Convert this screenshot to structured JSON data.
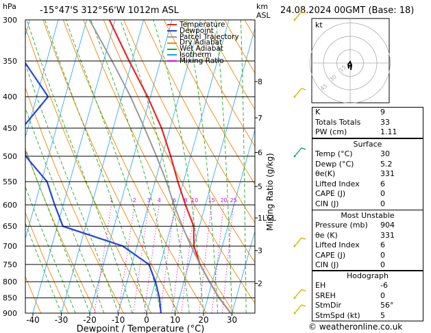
{
  "header": {
    "hpa_label": "hPa",
    "location": "-15°47'S 312°56'W 1012m ASL",
    "km_label": "km",
    "asl_label": "ASL",
    "datetime": "24.08.2024 00GMT (Base: 18)"
  },
  "footer": {
    "copyright": "© weatheronline.co.uk"
  },
  "hodograph": {
    "label": "kt",
    "rings": [
      "45",
      "30",
      "15"
    ]
  },
  "legend": [
    {
      "label": "Temperature",
      "color": "#ee2222"
    },
    {
      "label": "Dewpoint",
      "color": "#2244dd"
    },
    {
      "label": "Parcel Trajectory",
      "color": "#999999"
    },
    {
      "label": "Dry Adiabat",
      "color": "#ee8800"
    },
    {
      "label": "Wet Adiabat",
      "color": "#22aa22"
    },
    {
      "label": "Isotherm",
      "color": "#00aaee"
    },
    {
      "label": "Mixing Ratio",
      "color": "#dd00dd"
    }
  ],
  "indices": [
    {
      "label": "K",
      "value": "9"
    },
    {
      "label": "Totals Totals",
      "value": "33"
    },
    {
      "label": "PW (cm)",
      "value": "1.11"
    }
  ],
  "surface": {
    "title": "Surface",
    "rows": [
      {
        "label": "Temp (°C)",
        "value": "30"
      },
      {
        "label": "Dewp (°C)",
        "value": "5.2"
      },
      {
        "label": "θe(K)",
        "value": "331"
      },
      {
        "label": "Lifted Index",
        "value": "6"
      },
      {
        "label": "CAPE (J)",
        "value": "0"
      },
      {
        "label": "CIN (J)",
        "value": "0"
      }
    ]
  },
  "unstable": {
    "title": "Most Unstable",
    "rows": [
      {
        "label": "Pressure (mb)",
        "value": "904"
      },
      {
        "label": "θe (K)",
        "value": "331"
      },
      {
        "label": "Lifted Index",
        "value": "6"
      },
      {
        "label": "CAPE (J)",
        "value": "0"
      },
      {
        "label": "CIN (J)",
        "value": "0"
      }
    ]
  },
  "hodo_table": {
    "title": "Hodograph",
    "rows": [
      {
        "label": "EH",
        "value": "-6"
      },
      {
        "label": "SREH",
        "value": "0"
      },
      {
        "label": "StmDir",
        "value": "56°"
      },
      {
        "label": "StmSpd (kt)",
        "value": "5"
      }
    ]
  },
  "chart_data": {
    "type": "line",
    "xlabel": "Dewpoint / Temperature (°C)",
    "ylabel_right": "Mixing Ratio (g/kg)",
    "x_ticks": [
      -40,
      -30,
      -20,
      -10,
      0,
      10,
      20,
      30
    ],
    "pressure_levels": [
      300,
      350,
      400,
      450,
      500,
      550,
      600,
      650,
      700,
      750,
      800,
      850,
      900
    ],
    "km_ticks": [
      {
        "km": "1LCL",
        "p": 630
      },
      {
        "km": "2",
        "p": 805
      },
      {
        "km": "3",
        "p": 712
      },
      {
        "km": "5",
        "p": 560
      },
      {
        "km": "6",
        "p": 493
      },
      {
        "km": "7",
        "p": 433
      },
      {
        "km": "8",
        "p": 378
      }
    ],
    "mixing_ratio_labels": [
      "1",
      "2",
      "3",
      "4",
      "6",
      "8",
      "10",
      "15",
      "20",
      "25"
    ],
    "series": [
      {
        "name": "Temperature",
        "color": "#ee2222",
        "points": [
          [
            904,
            30
          ],
          [
            850,
            24
          ],
          [
            800,
            19
          ],
          [
            750,
            14
          ],
          [
            700,
            10
          ],
          [
            650,
            8
          ],
          [
            600,
            3
          ],
          [
            550,
            -2
          ],
          [
            500,
            -7
          ],
          [
            450,
            -13
          ],
          [
            400,
            -21
          ],
          [
            350,
            -31
          ],
          [
            300,
            -42
          ]
        ]
      },
      {
        "name": "Dewpoint",
        "color": "#2244dd",
        "points": [
          [
            904,
            5.2
          ],
          [
            850,
            3
          ],
          [
            800,
            0
          ],
          [
            750,
            -4
          ],
          [
            700,
            -15
          ],
          [
            650,
            -38
          ],
          [
            600,
            -43
          ],
          [
            550,
            -48
          ],
          [
            500,
            -58
          ],
          [
            450,
            -62
          ],
          [
            400,
            -56
          ],
          [
            350,
            -68
          ],
          [
            300,
            -78
          ]
        ]
      },
      {
        "name": "Parcel Trajectory",
        "color": "#999999",
        "points": [
          [
            904,
            30
          ],
          [
            850,
            24
          ],
          [
            800,
            19
          ],
          [
            750,
            14
          ],
          [
            700,
            9
          ],
          [
            650,
            4
          ],
          [
            630,
            2
          ],
          [
            600,
            -1
          ],
          [
            550,
            -6
          ],
          [
            500,
            -12
          ],
          [
            450,
            -19
          ],
          [
            400,
            -27
          ],
          [
            350,
            -37
          ],
          [
            300,
            -49
          ]
        ]
      }
    ],
    "wind_barbs": [
      {
        "p": 300,
        "color": "#ddbb00"
      },
      {
        "p": 400,
        "color": "#ddbb00"
      },
      {
        "p": 500,
        "color": "#22aa66"
      },
      {
        "p": 700,
        "color": "#ddbb00"
      },
      {
        "p": 850,
        "color": "#ddbb00"
      },
      {
        "p": 900,
        "color": "#ddbb00"
      }
    ]
  }
}
